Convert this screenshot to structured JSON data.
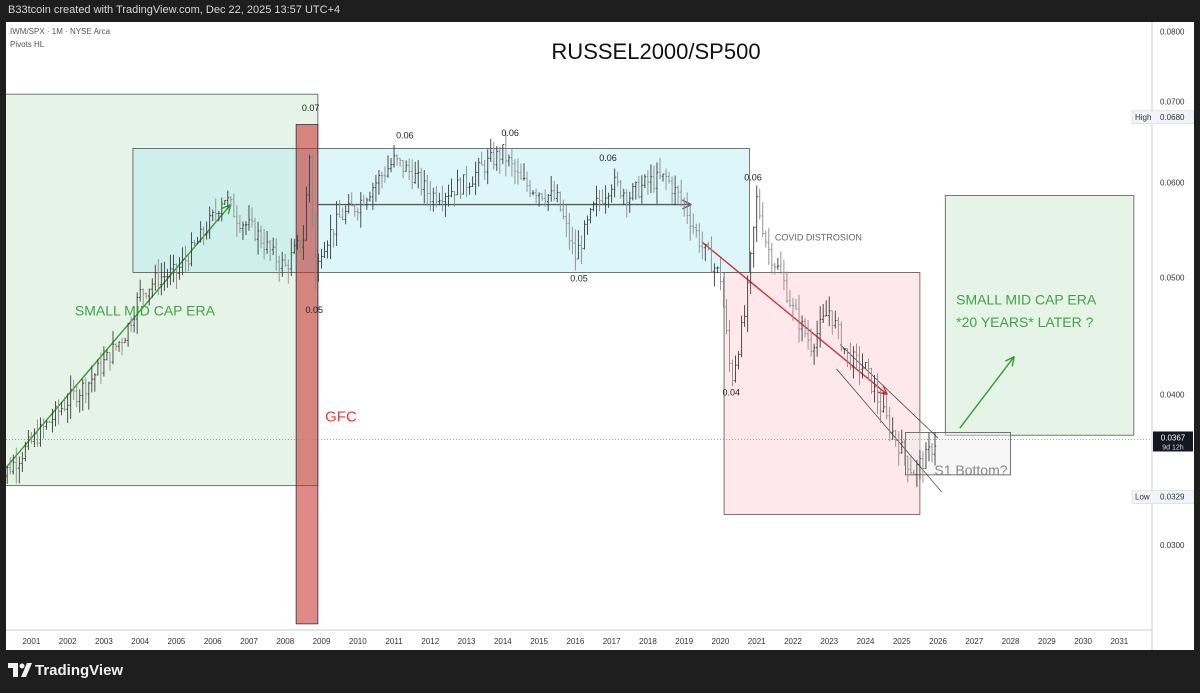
{
  "header": {
    "credit": "B33tcoin created with TradingView.com, Dec 22, 2025 13:57 UTC+4"
  },
  "legend": {
    "symbol": "IWM/SPX · 1M · NYSE Arca",
    "indicator": "Pivots HL"
  },
  "footer": {
    "brand": "TradingView"
  },
  "colors": {
    "up": "#26a69a",
    "green_zone": "#c8e6c9",
    "blue_zone": "#b2ebf2",
    "red_zone": "#ffcdd2",
    "gfc_bar": "#b71c1c",
    "green_text": "#43a047",
    "red_text": "#e53935",
    "arrow_green": "#2e9e2e",
    "arrow_red": "#d32f2f",
    "arrow_gray": "#5a5a5a"
  },
  "chart_data": {
    "type": "candlestick",
    "title": "RUSSEL2000/SP500",
    "x_ticks": [
      "2001",
      "2002",
      "2003",
      "2004",
      "2005",
      "2006",
      "2007",
      "2008",
      "2009",
      "2010",
      "2011",
      "2012",
      "2013",
      "2014",
      "2015",
      "2016",
      "2017",
      "2018",
      "2019",
      "2020",
      "2021",
      "2022",
      "2023",
      "2024",
      "2025",
      "2026",
      "2027",
      "2028",
      "2029",
      "2030",
      "2031"
    ],
    "y_ticks": [
      "0.0800",
      "0.0700",
      "0.0600",
      "0.0500",
      "0.0400",
      "0.0300"
    ],
    "ylim": [
      0.0255,
      0.0815
    ],
    "log_scale": true,
    "series_path": [
      [
        2000.0,
        0.0335
      ],
      [
        2000.3,
        0.0345
      ],
      [
        2001.0,
        0.0365
      ],
      [
        2001.5,
        0.038
      ],
      [
        2002.0,
        0.0395
      ],
      [
        2002.6,
        0.041
      ],
      [
        2003.0,
        0.0425
      ],
      [
        2003.6,
        0.045
      ],
      [
        2004.0,
        0.0485
      ],
      [
        2004.5,
        0.05
      ],
      [
        2005.0,
        0.0505
      ],
      [
        2005.5,
        0.053
      ],
      [
        2006.0,
        0.056
      ],
      [
        2006.3,
        0.0585
      ],
      [
        2006.7,
        0.056
      ],
      [
        2007.2,
        0.0545
      ],
      [
        2007.7,
        0.052
      ],
      [
        2008.0,
        0.051
      ],
      [
        2008.5,
        0.054
      ],
      [
        2008.7,
        0.065
      ],
      [
        2008.8,
        0.049
      ],
      [
        2009.0,
        0.053
      ],
      [
        2009.5,
        0.056
      ],
      [
        2010.0,
        0.0575
      ],
      [
        2010.5,
        0.06
      ],
      [
        2011.0,
        0.0625
      ],
      [
        2011.5,
        0.061
      ],
      [
        2012.0,
        0.0585
      ],
      [
        2012.5,
        0.059
      ],
      [
        2013.0,
        0.06
      ],
      [
        2013.5,
        0.062
      ],
      [
        2014.0,
        0.0635
      ],
      [
        2014.5,
        0.06
      ],
      [
        2015.0,
        0.059
      ],
      [
        2015.5,
        0.058
      ],
      [
        2016.0,
        0.052
      ],
      [
        2016.5,
        0.057
      ],
      [
        2017.0,
        0.06
      ],
      [
        2017.5,
        0.0585
      ],
      [
        2018.0,
        0.06
      ],
      [
        2018.5,
        0.0605
      ],
      [
        2019.0,
        0.0575
      ],
      [
        2019.5,
        0.053
      ],
      [
        2020.0,
        0.05
      ],
      [
        2020.3,
        0.041
      ],
      [
        2020.7,
        0.047
      ],
      [
        2021.0,
        0.058
      ],
      [
        2021.3,
        0.053
      ],
      [
        2021.7,
        0.05
      ],
      [
        2022.0,
        0.047
      ],
      [
        2022.5,
        0.044
      ],
      [
        2023.0,
        0.047
      ],
      [
        2023.5,
        0.043
      ],
      [
        2024.0,
        0.042
      ],
      [
        2024.5,
        0.0385
      ],
      [
        2025.0,
        0.036
      ],
      [
        2025.3,
        0.0345
      ],
      [
        2025.7,
        0.0355
      ],
      [
        2025.95,
        0.0367
      ]
    ],
    "last": "0.0367",
    "last_countdown": "9d 12h",
    "high": {
      "label": "High",
      "value": "0.0680"
    },
    "low": {
      "label": "Low",
      "value": "0.0329"
    },
    "pivot_labels": [
      {
        "text": "0.07",
        "x": 2008.7,
        "y": 0.068,
        "pos": "above"
      },
      {
        "text": "0.06",
        "x": 2011.3,
        "y": 0.0645,
        "pos": "above"
      },
      {
        "text": "0.06",
        "x": 2014.2,
        "y": 0.0648,
        "pos": "above"
      },
      {
        "text": "0.06",
        "x": 2016.9,
        "y": 0.0618,
        "pos": "above"
      },
      {
        "text": "0.06",
        "x": 2020.9,
        "y": 0.0595,
        "pos": "above"
      },
      {
        "text": "0.05",
        "x": 2008.8,
        "y": 0.048,
        "pos": "below"
      },
      {
        "text": "0.05",
        "x": 2016.1,
        "y": 0.051,
        "pos": "below"
      },
      {
        "text": "0.04",
        "x": 2020.3,
        "y": 0.041,
        "pos": "below"
      }
    ],
    "annotations": [
      {
        "text": "SMALL MID CAP ERA",
        "x": 2002.2,
        "y": 0.0465,
        "color": "#43a047"
      },
      {
        "text": "GFC",
        "x": 2009.1,
        "y": 0.038,
        "color": "#e53935"
      },
      {
        "text": "COVID DISTROSION",
        "x": 2021.5,
        "y": 0.0537,
        "color": "#666666"
      },
      {
        "text": "SMALL MID CAP ERA",
        "x": 2026.5,
        "y": 0.0475,
        "color": "#43a047"
      },
      {
        "text": "*20 YEARS* LATER ?",
        "x": 2026.5,
        "y": 0.0455,
        "color": "#43a047"
      },
      {
        "text": "S1 Bottom?",
        "x": 2025.9,
        "y": 0.0343,
        "color": "#888888"
      }
    ],
    "zones": [
      {
        "x0": 2000.0,
        "x1": 2008.9,
        "y0": 0.0336,
        "y1": 0.071,
        "fill": "#c8e6c9"
      },
      {
        "x0": 2003.8,
        "x1": 2020.8,
        "y0": 0.0505,
        "y1": 0.064,
        "fill": "#b2ebf2"
      },
      {
        "x0": 2020.1,
        "x1": 2025.5,
        "y0": 0.0318,
        "y1": 0.0505,
        "fill": "#ffcdd2"
      },
      {
        "x0": 2026.2,
        "x1": 2031.4,
        "y0": 0.037,
        "y1": 0.0585,
        "fill": "#c8e6c9"
      },
      {
        "x0": 2025.1,
        "x1": 2028.0,
        "y0": 0.0343,
        "y1": 0.0372,
        "fill": "#eeeeee"
      }
    ],
    "gfc_bar": {
      "x0": 2008.3,
      "x1": 2008.9,
      "y0": 0.0258,
      "y1": 0.067,
      "fill": "#c62828"
    },
    "channel_lines": [
      {
        "x0": 2023.3,
        "y0": 0.044,
        "x1": 2026.0,
        "y1": 0.0368
      },
      {
        "x0": 2023.2,
        "y0": 0.042,
        "x1": 2026.1,
        "y1": 0.0332
      }
    ],
    "arrows": [
      {
        "x0": 2000.2,
        "y0": 0.0345,
        "x1": 2006.5,
        "y1": 0.0575,
        "color": "#2e9e2e"
      },
      {
        "x0": 2008.9,
        "y0": 0.0575,
        "x1": 2019.2,
        "y1": 0.0575,
        "color": "#5a5a5a"
      },
      {
        "x0": 2019.5,
        "y0": 0.0535,
        "x1": 2024.6,
        "y1": 0.04,
        "color": "#d32f2f"
      },
      {
        "x0": 2026.6,
        "y0": 0.0375,
        "x1": 2028.1,
        "y1": 0.043,
        "color": "#2e9e2e"
      }
    ]
  }
}
